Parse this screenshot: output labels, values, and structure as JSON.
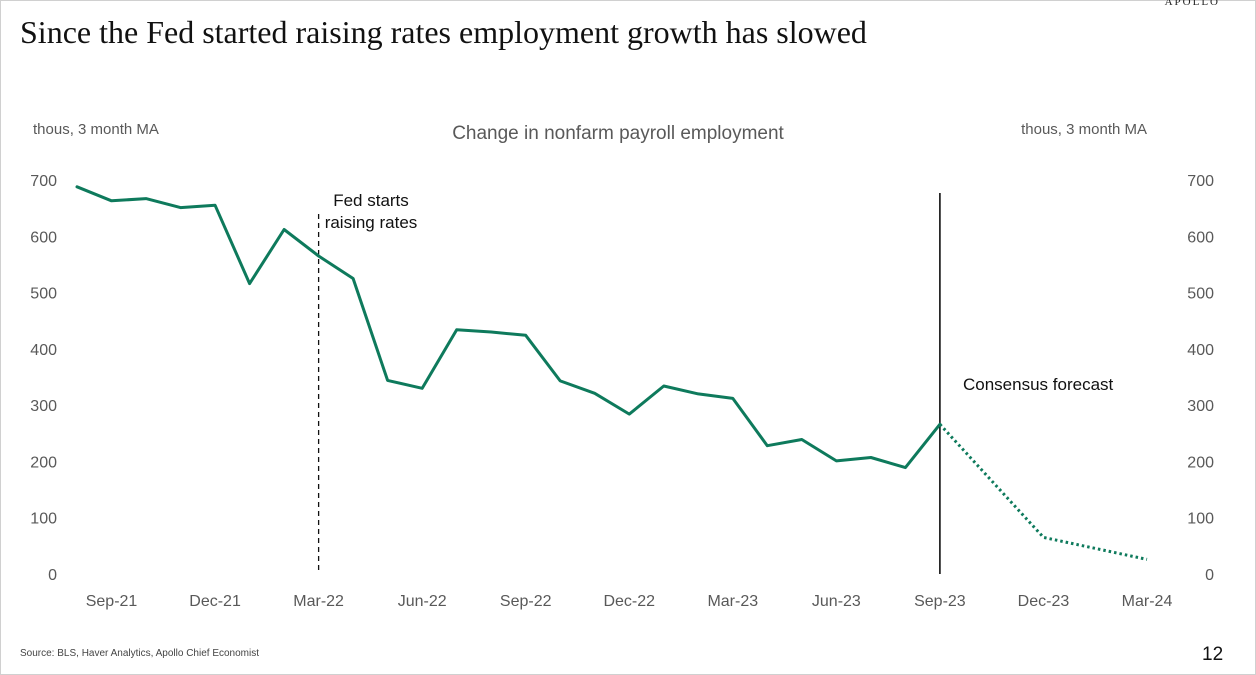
{
  "brand": "APOLLO",
  "title": "Since the Fed started raising rates employment growth has slowed",
  "source": "Source: BLS, Haver Analytics, Apollo Chief Economist",
  "page_number": "12",
  "colors": {
    "line": "#0e7a5c",
    "marker_solid": "#000000",
    "axis_text": "#595959"
  },
  "chart_data": {
    "type": "line",
    "title": "Change in nonfarm payroll employment",
    "ylabel_left": "thous, 3 month MA",
    "ylabel_right": "thous, 3 month MA",
    "ylim": [
      0,
      700
    ],
    "yticks": [
      0,
      100,
      200,
      300,
      400,
      500,
      600,
      700
    ],
    "x_tick_labels": [
      "Sep-21",
      "Dec-21",
      "Mar-22",
      "Jun-22",
      "Sep-22",
      "Dec-22",
      "Mar-23",
      "Jun-23",
      "Sep-23",
      "Dec-23",
      "Mar-24"
    ],
    "x_tick_months": [
      "2021-09",
      "2021-12",
      "2022-03",
      "2022-06",
      "2022-09",
      "2022-12",
      "2023-03",
      "2023-06",
      "2023-09",
      "2023-12",
      "2024-03"
    ],
    "xlim": [
      "2021-08",
      "2024-03"
    ],
    "grid": false,
    "legend": "none",
    "series": [
      {
        "style": "solid",
        "x": [
          "2021-08",
          "2021-09",
          "2021-10",
          "2021-11",
          "2021-12",
          "2022-01",
          "2022-02",
          "2022-03",
          "2022-04",
          "2022-05",
          "2022-06",
          "2022-07",
          "2022-08",
          "2022-09",
          "2022-10",
          "2022-11",
          "2022-12",
          "2023-01",
          "2023-02",
          "2023-03",
          "2023-04",
          "2023-05",
          "2023-06",
          "2023-07",
          "2023-08",
          "2023-09"
        ],
        "values": [
          688,
          663,
          667,
          651,
          655,
          516,
          612,
          565,
          525,
          344,
          330,
          434,
          430,
          424,
          343,
          321,
          284,
          334,
          320,
          312,
          228,
          239,
          201,
          207,
          189,
          266
        ]
      },
      {
        "style": "dotted",
        "x": [
          "2023-09",
          "2023-12",
          "2024-03"
        ],
        "values": [
          266,
          65,
          26
        ]
      }
    ],
    "annotations": [
      {
        "text_lines": [
          "Fed starts",
          "raising rates"
        ],
        "x": "2022-03",
        "line": "dashed"
      },
      {
        "text": "Consensus forecast",
        "x": "2023-09",
        "line": "solid"
      }
    ]
  }
}
